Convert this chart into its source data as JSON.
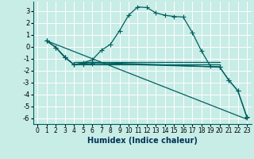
{
  "xlabel": "Humidex (Indice chaleur)",
  "xlim": [
    -0.5,
    23.5
  ],
  "ylim": [
    -6.5,
    3.8
  ],
  "yticks": [
    3,
    2,
    1,
    0,
    -1,
    -2,
    -3,
    -4,
    -5,
    -6
  ],
  "xticks": [
    0,
    1,
    2,
    3,
    4,
    5,
    6,
    7,
    8,
    9,
    10,
    11,
    12,
    13,
    14,
    15,
    16,
    17,
    18,
    19,
    20,
    21,
    22,
    23
  ],
  "bg_color": "#c8ece6",
  "grid_color": "#b0d8d2",
  "line_color": "#006060",
  "lines": [
    {
      "x": [
        1,
        2,
        3,
        4,
        5,
        6,
        7,
        8,
        9,
        10,
        11,
        12,
        13,
        14,
        15,
        16,
        17,
        18,
        19,
        20
      ],
      "y": [
        0.5,
        -0.05,
        -0.85,
        -1.5,
        -1.35,
        -1.1,
        -0.3,
        0.2,
        1.35,
        2.65,
        3.35,
        3.3,
        2.85,
        2.65,
        2.55,
        2.5,
        1.2,
        -0.35,
        -1.65,
        -1.7
      ]
    },
    {
      "x": [
        1,
        23
      ],
      "y": [
        0.5,
        -6.1
      ]
    },
    {
      "x": [
        1,
        2,
        3,
        4,
        5,
        6,
        20,
        21,
        22,
        23
      ],
      "y": [
        0.5,
        -0.05,
        -0.9,
        -1.5,
        -1.4,
        -1.3,
        -1.7,
        -2.8,
        -3.7,
        -5.9
      ]
    },
    {
      "x": [
        1,
        2,
        3,
        4,
        5,
        6,
        20,
        21,
        22,
        23
      ],
      "y": [
        0.5,
        -0.05,
        -0.9,
        -1.5,
        -1.5,
        -1.4,
        -1.7,
        -2.8,
        -3.7,
        -5.95
      ]
    }
  ],
  "flat_lines": [
    {
      "x_start": 4,
      "x_end": 20,
      "y": -1.3
    },
    {
      "x_start": 4,
      "x_end": 20,
      "y": -1.5
    }
  ]
}
